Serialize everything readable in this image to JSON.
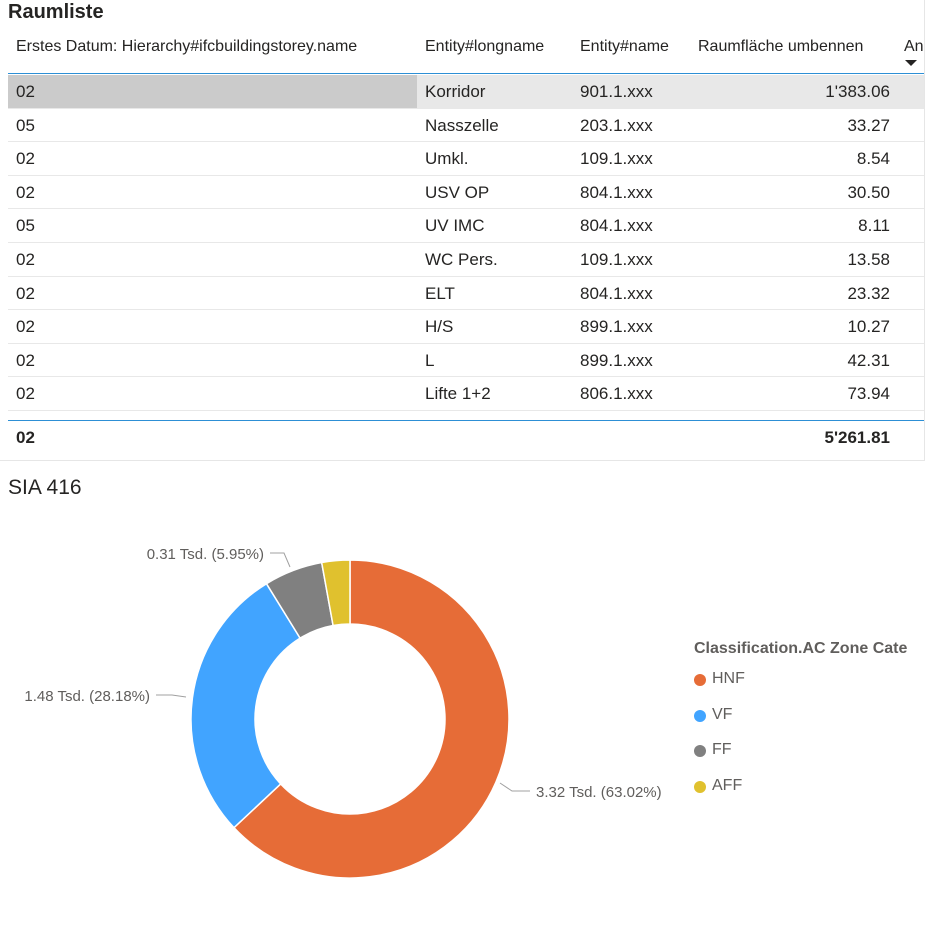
{
  "table": {
    "title": "Raumliste",
    "columns": [
      "Erstes Datum: Hierarchy#ifcbuildingstorey.name",
      "Entity#longname",
      "Entity#name",
      "Raumfläche umbennen",
      "An"
    ],
    "rows": [
      {
        "storey": "02",
        "longname": "Korridor",
        "name": "901.1.xxx",
        "area": "1'383.06"
      },
      {
        "storey": "05",
        "longname": "Nasszelle",
        "name": "203.1.xxx",
        "area": "33.27"
      },
      {
        "storey": "02",
        "longname": "Umkl.",
        "name": "109.1.xxx",
        "area": "8.54"
      },
      {
        "storey": "02",
        "longname": "USV OP",
        "name": "804.1.xxx",
        "area": "30.50"
      },
      {
        "storey": "05",
        "longname": "UV IMC",
        "name": "804.1.xxx",
        "area": "8.11"
      },
      {
        "storey": "02",
        "longname": "WC Pers.",
        "name": "109.1.xxx",
        "area": "13.58"
      },
      {
        "storey": "02",
        "longname": "ELT",
        "name": "804.1.xxx",
        "area": "23.32"
      },
      {
        "storey": "02",
        "longname": "H/S",
        "name": "899.1.xxx",
        "area": "10.27"
      },
      {
        "storey": "02",
        "longname": "L",
        "name": "899.1.xxx",
        "area": "42.31"
      },
      {
        "storey": "02",
        "longname": "Lifte 1+2",
        "name": "806.1.xxx",
        "area": "73.94"
      }
    ],
    "total": {
      "storey": "02",
      "area": "5'261.81"
    }
  },
  "chart_data": {
    "type": "pie",
    "title": "SIA 416",
    "legend_title": "Classification.AC Zone Cate",
    "legend_position": "right",
    "donut": true,
    "slices": [
      {
        "name": "HNF",
        "value": 3.32,
        "percent": 63.02,
        "label": "3.32 Tsd. (63.02%)",
        "color": "#e66c37"
      },
      {
        "name": "VF",
        "value": 1.48,
        "percent": 28.18,
        "label": "1.48 Tsd. (28.18%)",
        "color": "#41a4ff"
      },
      {
        "name": "FF",
        "value": 0.31,
        "percent": 5.95,
        "label": "0.31 Tsd. (5.95%)",
        "color": "#808080"
      },
      {
        "name": "AFF",
        "value": 0.15,
        "percent": 2.85,
        "label": "",
        "color": "#e0c12e"
      }
    ]
  }
}
